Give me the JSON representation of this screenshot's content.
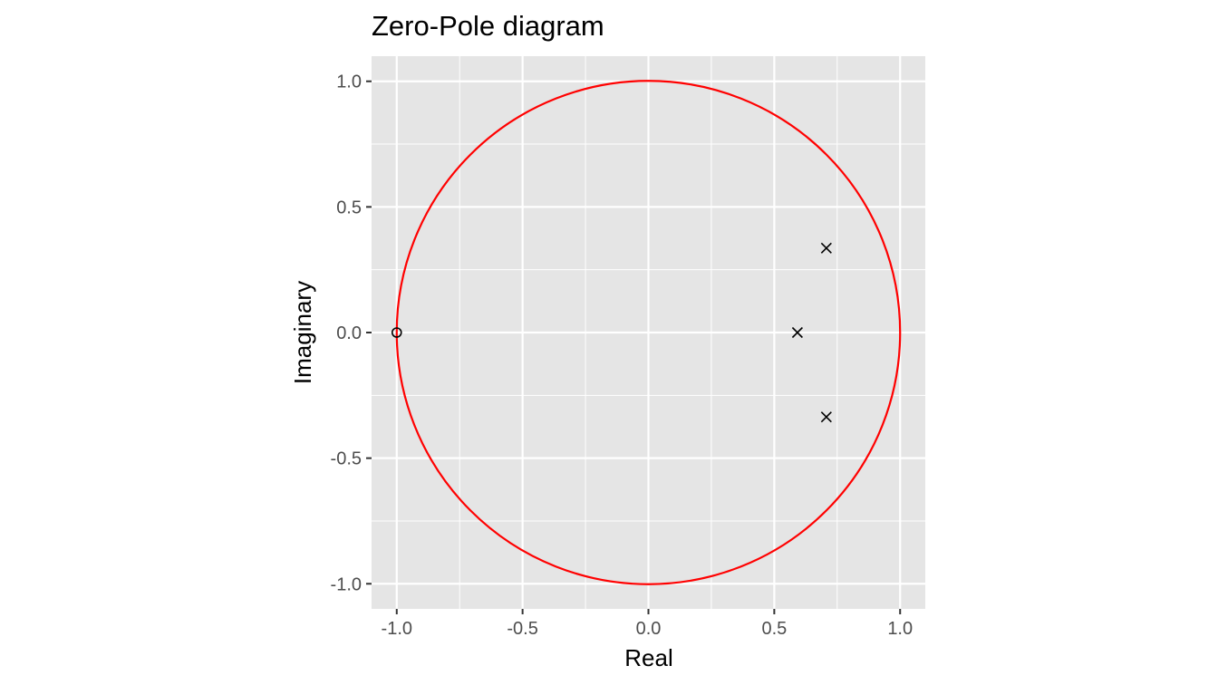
{
  "chart_data": {
    "type": "scatter",
    "title": "Zero-Pole diagram",
    "xlabel": "Real",
    "ylabel": "Imaginary",
    "xlim": [
      -1.1,
      1.1
    ],
    "ylim": [
      -1.1,
      1.1
    ],
    "x_ticks": [
      -1.0,
      -0.5,
      0.0,
      0.5,
      1.0
    ],
    "x_tick_labels": [
      "-1.0",
      "-0.5",
      "0.0",
      "0.5",
      "1.0"
    ],
    "y_ticks": [
      -1.0,
      -0.5,
      0.0,
      0.5,
      1.0
    ],
    "y_tick_labels": [
      "-1.0",
      "-0.5",
      "0.0",
      "0.5",
      "1.0"
    ],
    "grid": true,
    "legend": "none",
    "unit_circle": {
      "center": [
        0,
        0
      ],
      "radius": 1,
      "color": "#ff0000"
    },
    "zeros": [
      {
        "x": -1.0,
        "y": 0.0
      }
    ],
    "poles": [
      {
        "x": 0.707,
        "y": 0.336
      },
      {
        "x": 0.592,
        "y": 0.0
      },
      {
        "x": 0.707,
        "y": -0.336
      }
    ],
    "colors": {
      "panel_background": "#e5e5e5",
      "grid": "#ffffff",
      "marker": "#000000",
      "tick_text": "#4d4d4d",
      "tick_mark": "#333333"
    }
  }
}
